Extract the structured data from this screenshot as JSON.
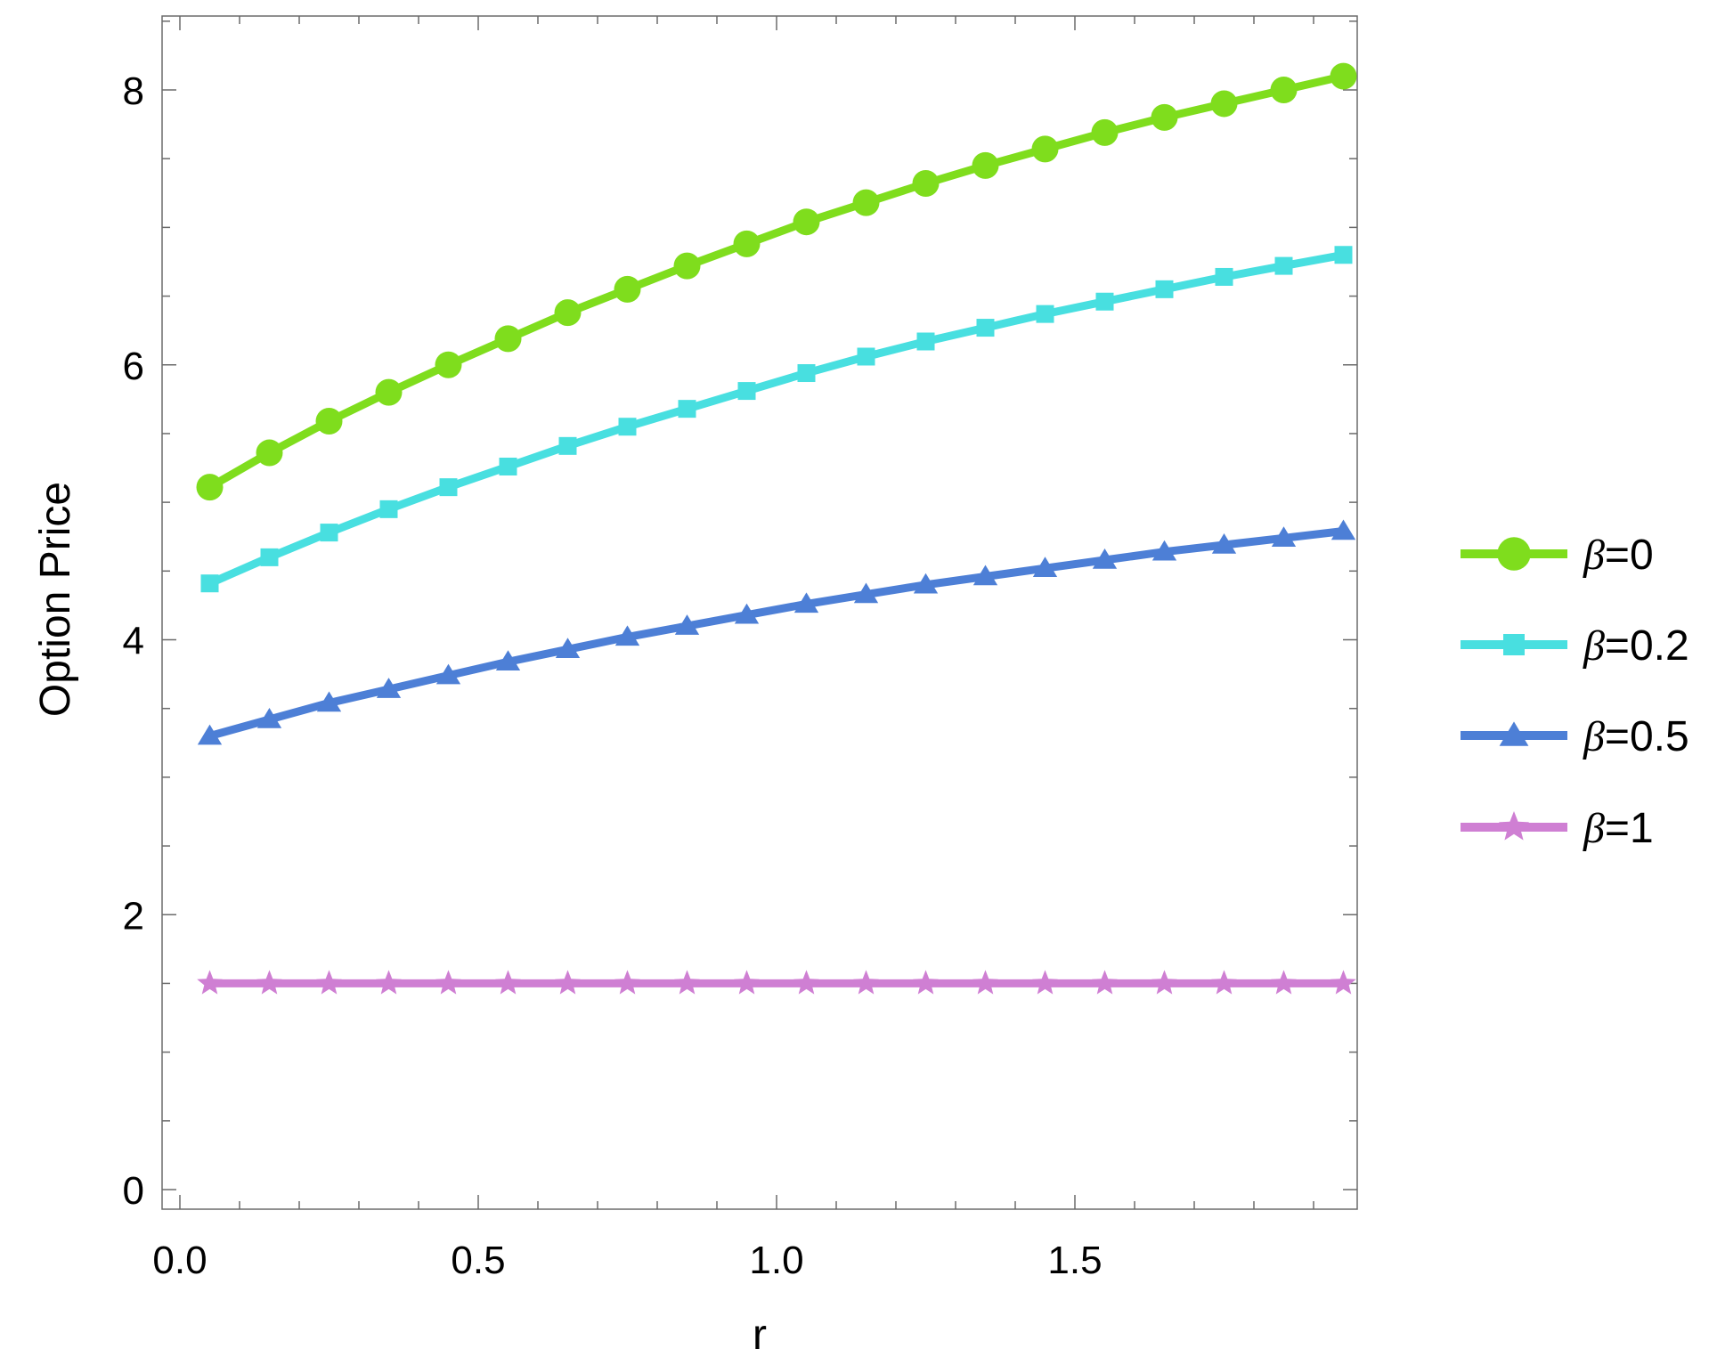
{
  "chart_data": {
    "type": "line",
    "title": "",
    "xlabel": "r",
    "ylabel": "Option Price",
    "xlim": [
      -0.03,
      1.98
    ],
    "ylim": [
      -0.18,
      8.55
    ],
    "x_ticks": [
      0.0,
      0.5,
      1.0,
      1.5
    ],
    "x_tick_labels": [
      "0.0",
      "0.5",
      "1.0",
      "1.5"
    ],
    "y_ticks": [
      0,
      2,
      4,
      6,
      8
    ],
    "y_tick_labels": [
      "0",
      "2",
      "4",
      "6",
      "8"
    ],
    "grid": false,
    "legend_position": "right",
    "x": [
      0.05,
      0.15,
      0.25,
      0.35,
      0.45,
      0.55,
      0.65,
      0.75,
      0.85,
      0.95,
      1.05,
      1.15,
      1.25,
      1.35,
      1.45,
      1.55,
      1.65,
      1.75,
      1.85,
      1.95
    ],
    "series": [
      {
        "name": "β=0",
        "name_symbol": "β",
        "name_rest": "=0",
        "color": "#7fdd1d",
        "marker": "circle",
        "values": [
          5.11,
          5.36,
          5.59,
          5.8,
          6.0,
          6.19,
          6.38,
          6.55,
          6.72,
          6.88,
          7.04,
          7.18,
          7.32,
          7.45,
          7.57,
          7.69,
          7.8,
          7.9,
          8.0,
          8.1
        ]
      },
      {
        "name": "β=0.2",
        "name_symbol": "β",
        "name_rest": "=0.2",
        "color": "#48dfe0",
        "marker": "square",
        "values": [
          4.41,
          4.6,
          4.78,
          4.95,
          5.11,
          5.26,
          5.41,
          5.55,
          5.68,
          5.81,
          5.94,
          6.06,
          6.17,
          6.27,
          6.37,
          6.46,
          6.55,
          6.64,
          6.72,
          6.8
        ]
      },
      {
        "name": "β=0.5",
        "name_symbol": "β",
        "name_rest": "=0.5",
        "color": "#4d7fd6",
        "marker": "triangle",
        "values": [
          3.3,
          3.42,
          3.54,
          3.64,
          3.74,
          3.84,
          3.93,
          4.02,
          4.1,
          4.18,
          4.26,
          4.33,
          4.4,
          4.46,
          4.52,
          4.58,
          4.64,
          4.69,
          4.74,
          4.79
        ]
      },
      {
        "name": "β=1",
        "name_symbol": "β",
        "name_rest": "=1",
        "color": "#cf7fd3",
        "marker": "star",
        "values": [
          1.5,
          1.5,
          1.5,
          1.5,
          1.5,
          1.5,
          1.5,
          1.5,
          1.5,
          1.5,
          1.5,
          1.5,
          1.5,
          1.5,
          1.5,
          1.5,
          1.5,
          1.5,
          1.5,
          1.5
        ]
      }
    ]
  }
}
